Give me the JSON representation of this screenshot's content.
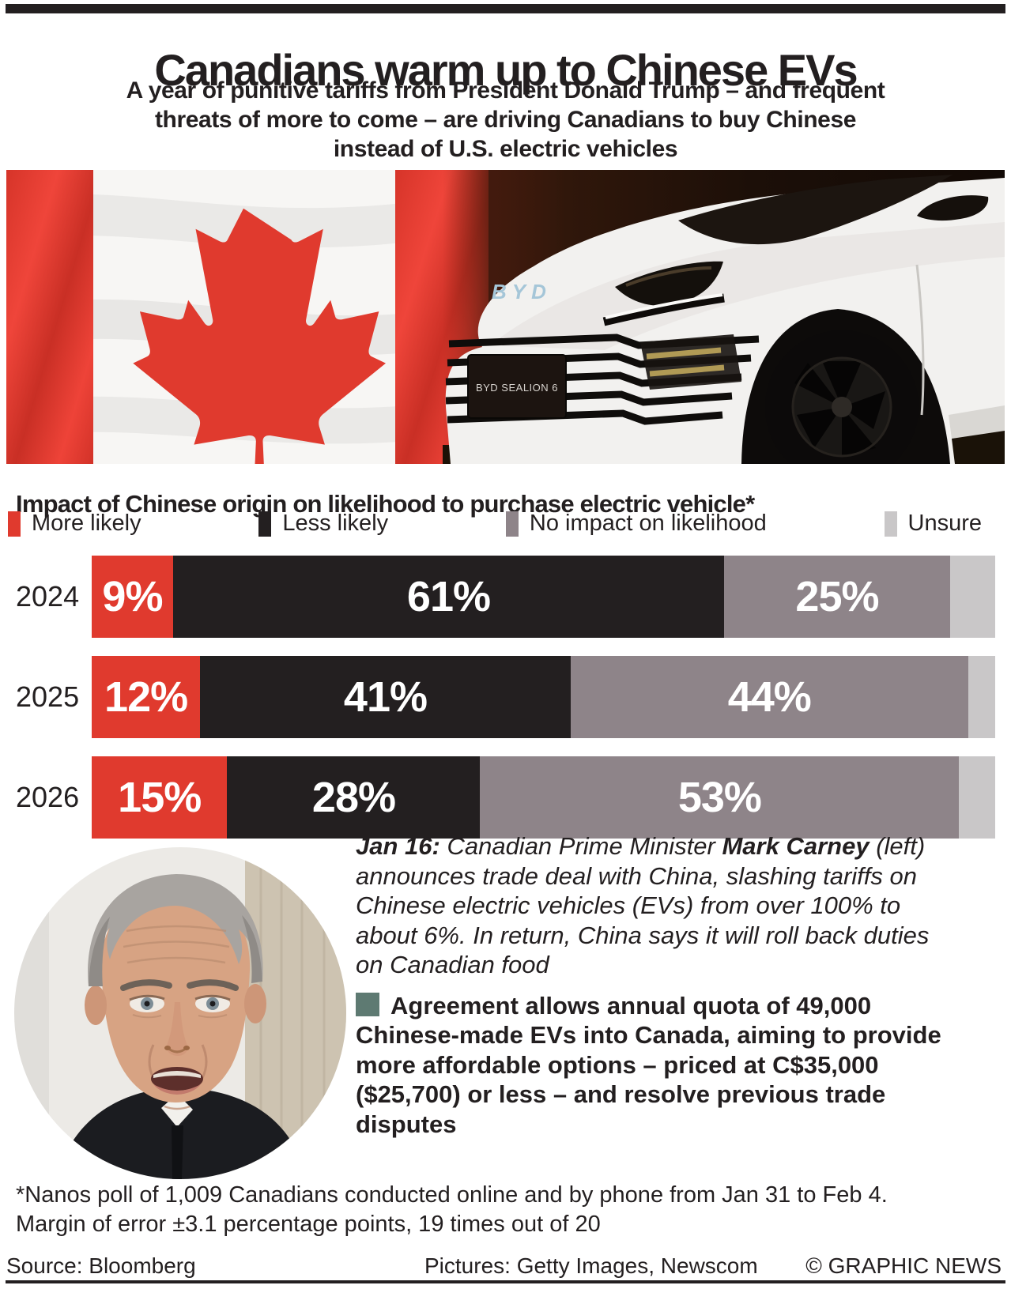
{
  "header": {
    "title": "Canadians warm up to Chinese EVs",
    "subtitle_lines": [
      "A year of punitive tariffs from President Donald Trump – and frequent",
      "threats of more to come – are driving Canadians to buy Chinese",
      "instead of U.S. electric vehicles"
    ]
  },
  "hero": {
    "car_badge": "BYD SEALION 6",
    "car_logo": "BYD"
  },
  "chart": {
    "title": "Impact of Chinese origin on likelihood to purchase electric vehicle*"
  },
  "chart_data": {
    "type": "bar",
    "stacked": true,
    "orientation": "horizontal",
    "categories": [
      "2024",
      "2025",
      "2026"
    ],
    "series": [
      {
        "name": "More likely",
        "color": "#e03a2e",
        "values": [
          9,
          12,
          15
        ],
        "labels_shown": true
      },
      {
        "name": "Less likely",
        "color": "#231f20",
        "values": [
          61,
          41,
          28
        ],
        "labels_shown": true
      },
      {
        "name": "No impact on likelihood",
        "color": "#8e8489",
        "values": [
          25,
          44,
          53
        ],
        "labels_shown": true
      },
      {
        "name": "Unsure",
        "color": "#c9c7c8",
        "values": [
          5,
          3,
          4
        ],
        "labels_shown": false
      }
    ],
    "value_suffix": "%",
    "xlim": [
      0,
      100
    ],
    "legend_position": "top"
  },
  "caption": {
    "date_label": "Jan 16:",
    "text_before_name": " Canadian Prime Minister ",
    "name": "Mark Carney",
    "text_after_name": " (left) announces trade deal with China, slashing tariffs on Chinese electric vehicles (EVs) from over 100% to about 6%. In return, China says it will roll back duties on Canadian food"
  },
  "bullet": {
    "color": "#5e7a72",
    "text": "Agreement allows annual quota of 49,000 Chinese-made EVs into Canada, aiming to provide more affordable options – priced at C$35,000 ($25,700) or less – and resolve previous trade disputes"
  },
  "footnote_lines": [
    "*Nanos poll of 1,009 Canadians conducted online and by phone from Jan 31 to Feb 4.",
    "Margin of error ±3.1 percentage points, 19 times out of 20"
  ],
  "footer": {
    "source": "Source: Bloomberg",
    "pictures": "Pictures: Getty Images, Newscom",
    "credit": "© GRAPHIC NEWS"
  }
}
